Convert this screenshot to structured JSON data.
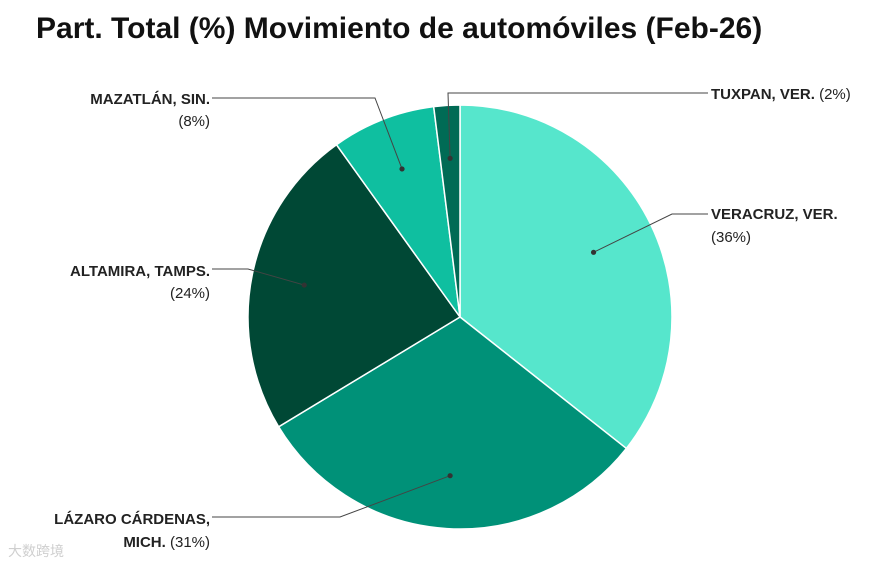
{
  "title": "Part. Total (%) Movimiento de automóviles (Feb-26)",
  "chart_data": {
    "type": "pie",
    "title": "Part. Total (%) Movimiento de automóviles (Feb-26)",
    "slices": [
      {
        "name": "VERACRUZ, VER.",
        "value": 36,
        "display": "(36%)",
        "color": "#56E6CC"
      },
      {
        "name": "LÁZARO CÁRDENAS, MICH.",
        "value": 31,
        "display": "(31%)",
        "color": "#009178"
      },
      {
        "name": "ALTAMIRA, TAMPS.",
        "value": 24,
        "display": "(24%)",
        "color": "#004835"
      },
      {
        "name": "MAZATLÁN, SIN.",
        "value": 8,
        "display": "(8%)",
        "color": "#0FBFA0"
      },
      {
        "name": "TUXPAN, VER.",
        "value": 2,
        "display": "(2%)",
        "color": "#006B55"
      }
    ],
    "legend": "labels-outside-with-leader-lines"
  },
  "watermark": "大数跨境"
}
